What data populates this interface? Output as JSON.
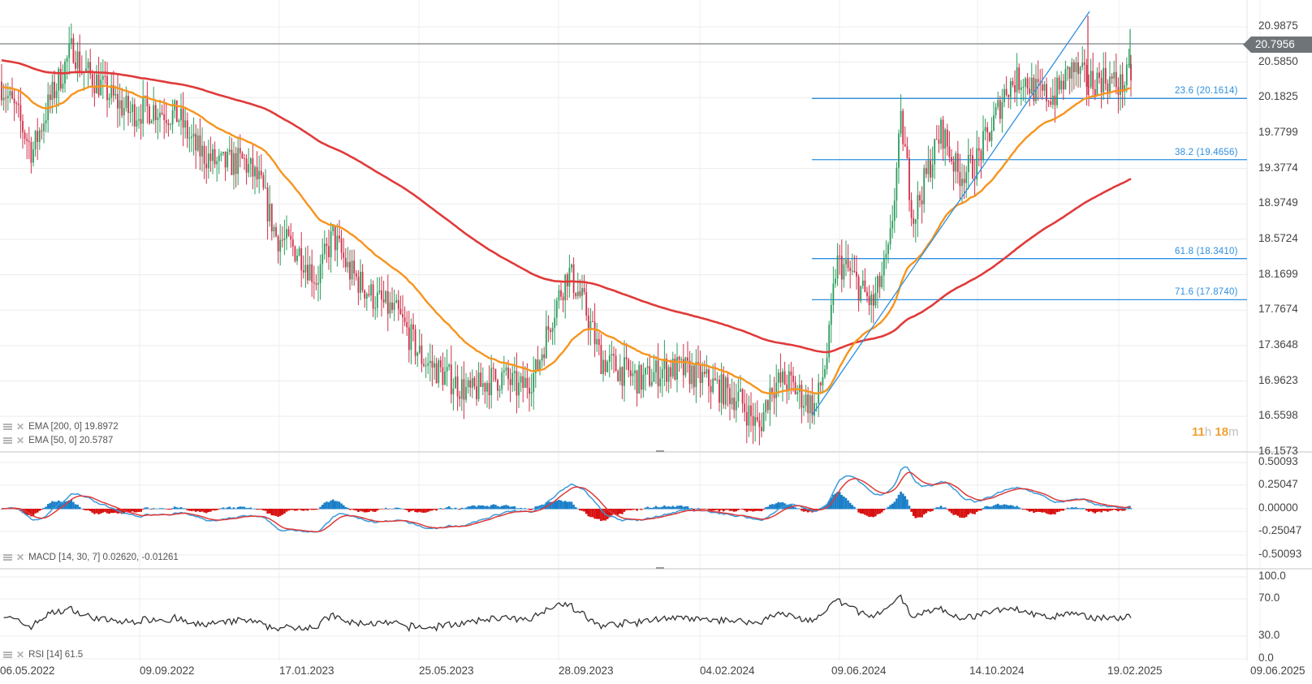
{
  "chart_data": [
    {
      "type": "candlestick",
      "title": "Price with EMA and Fibonacci retracement",
      "y_axis": {
        "ticks": [
          "20.9875",
          "20.5850",
          "20.1825",
          "19.7799",
          "19.3774",
          "18.9749",
          "18.5724",
          "18.1699",
          "17.7674",
          "17.3648",
          "16.9623",
          "16.5598",
          "16.1573"
        ],
        "range": [
          16.1573,
          20.9875
        ]
      },
      "current_price": "20.7956",
      "indicators": [
        {
          "name": "EMA",
          "params": "[200, 0]",
          "value": "19.8972",
          "color": "#e03a3a"
        },
        {
          "name": "EMA",
          "params": "[50, 0]",
          "value": "20.5787",
          "color": "#f7941d"
        }
      ],
      "fibonacci_levels": [
        {
          "label": "23.6 (20.1614)",
          "pct": 23.6,
          "price": 20.1614
        },
        {
          "label": "38.2 (19.4656)",
          "pct": 38.2,
          "price": 19.4656
        },
        {
          "label": "61.8 (18.3410)",
          "pct": 61.8,
          "price": 18.341
        },
        {
          "label": "71.6 (17.8740)",
          "pct": 71.6,
          "price": 17.874
        }
      ],
      "trend_line": {
        "from": {
          "date": "2024-04-17",
          "price": 16.56
        },
        "to": {
          "date": "2024-12-28",
          "price": 21.15
        },
        "color": "#2e8fe0"
      },
      "approx_close_series": {
        "dates": [
          "06.05.2022",
          "09.09.2022",
          "17.01.2023",
          "25.05.2023",
          "28.09.2023",
          "04.02.2024",
          "09.06.2024",
          "14.10.2024",
          "19.02.2025"
        ],
        "close": [
          20.2,
          20.1,
          18.3,
          17.0,
          18.0,
          17.0,
          18.5,
          20.3,
          20.79
        ]
      },
      "countdown": {
        "hours": "11",
        "h_unit": "h",
        "minutes": "18",
        "m_unit": "m"
      }
    },
    {
      "type": "line",
      "title": "MACD",
      "params": "[14, 30, 7]",
      "values": [
        "0.02620",
        "-0.01261"
      ],
      "y_axis": {
        "ticks": [
          "0.50093",
          "0.25047",
          "0.00000",
          "-0.25047",
          "-0.50093"
        ],
        "range": [
          -0.50093,
          0.50093
        ]
      },
      "series": [
        {
          "name": "MACD",
          "color": "#3a9ad9"
        },
        {
          "name": "Signal",
          "color": "#e03a3a"
        },
        {
          "name": "Histogram",
          "pos_color": "#1a7fc8",
          "neg_color": "#d81010"
        }
      ]
    },
    {
      "type": "line",
      "title": "RSI",
      "params": "[14]",
      "value": "61.5",
      "y_axis": {
        "ticks": [
          "100.0",
          "70.0",
          "30.0",
          "0.0"
        ],
        "range": [
          0,
          100
        ]
      },
      "series": [
        {
          "name": "RSI",
          "color": "#333333"
        }
      ]
    }
  ],
  "x_axis": {
    "labels": [
      "06.05.2022",
      "09.09.2022",
      "17.01.2023",
      "25.05.2023",
      "28.09.2023",
      "04.02.2024",
      "09.06.2024",
      "14.10.2024",
      "19.02.2025",
      "09.06.2025"
    ]
  },
  "legend": {
    "ema200": "EMA [200,  0] 19.8972",
    "ema50": "EMA [50,  0] 20.5787",
    "macd": "MACD [14,  30,  7] 0.02620,  -0.01261",
    "rsi": "RSI  [14]  61.5"
  },
  "price_axis": [
    "20.9875",
    "20.5850",
    "20.1825",
    "19.7799",
    "19.3774",
    "18.9749",
    "18.5724",
    "18.1699",
    "17.7674",
    "17.3648",
    "16.9623",
    "16.5598",
    "16.1573"
  ],
  "macd_axis": [
    "0.50093",
    "0.25047",
    "0.00000",
    "-0.25047",
    "-0.50093"
  ],
  "rsi_axis": [
    "100.0",
    "70.0",
    "30.0",
    "0.0"
  ],
  "price_tag": "20.7956",
  "fib": [
    "23.6 (20.1614)",
    "38.2 (19.4656)",
    "61.8 (18.3410)",
    "71.6 (17.8740)"
  ],
  "countdown": {
    "hours": "11",
    "h": "h",
    "minutes": "18",
    "m": "m"
  },
  "colors": {
    "ema200": "#e03a3a",
    "ema50": "#f7941d",
    "fib": "#2e8fe0",
    "up": "#2c9c5c",
    "down": "#d0304a",
    "grid": "#ececec"
  }
}
